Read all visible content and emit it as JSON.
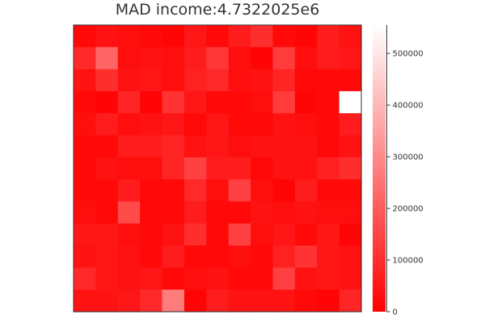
{
  "chart_data": {
    "type": "heatmap",
    "title": "MAD income:4.7322025e6",
    "xlabel": "",
    "ylabel": "",
    "colorbar": {
      "range": [
        0,
        555000
      ],
      "ticks": [
        0,
        100000,
        200000,
        300000,
        400000,
        500000
      ],
      "tick_labels": [
        "0",
        "100000",
        "200000",
        "300000",
        "400000",
        "500000"
      ],
      "low_color": "#ff0000",
      "high_color": "#ffffff"
    },
    "rows": 13,
    "cols": 13,
    "values": [
      [
        20000,
        40000,
        30000,
        20000,
        10000,
        50000,
        20000,
        60000,
        100000,
        20000,
        10000,
        60000,
        40000
      ],
      [
        90000,
        220000,
        30000,
        40000,
        30000,
        60000,
        120000,
        30000,
        10000,
        130000,
        30000,
        60000,
        50000
      ],
      [
        40000,
        100000,
        40000,
        50000,
        30000,
        70000,
        90000,
        30000,
        40000,
        80000,
        20000,
        20000,
        20000
      ],
      [
        20000,
        10000,
        80000,
        10000,
        110000,
        50000,
        20000,
        20000,
        30000,
        130000,
        10000,
        20000,
        555000
      ],
      [
        30000,
        60000,
        30000,
        40000,
        50000,
        20000,
        50000,
        20000,
        20000,
        40000,
        30000,
        20000,
        60000
      ],
      [
        20000,
        20000,
        60000,
        60000,
        80000,
        40000,
        50000,
        30000,
        40000,
        40000,
        40000,
        20000,
        40000
      ],
      [
        20000,
        40000,
        30000,
        30000,
        80000,
        140000,
        60000,
        60000,
        20000,
        40000,
        40000,
        70000,
        100000
      ],
      [
        20000,
        20000,
        60000,
        20000,
        20000,
        90000,
        30000,
        140000,
        30000,
        10000,
        60000,
        20000,
        20000
      ],
      [
        30000,
        20000,
        160000,
        20000,
        20000,
        60000,
        20000,
        20000,
        40000,
        30000,
        40000,
        30000,
        30000
      ],
      [
        50000,
        50000,
        30000,
        20000,
        40000,
        100000,
        20000,
        140000,
        30000,
        50000,
        20000,
        50000,
        10000
      ],
      [
        40000,
        50000,
        40000,
        20000,
        60000,
        20000,
        20000,
        30000,
        20000,
        70000,
        110000,
        50000,
        40000
      ],
      [
        90000,
        50000,
        40000,
        50000,
        20000,
        30000,
        40000,
        20000,
        20000,
        140000,
        40000,
        50000,
        40000
      ],
      [
        40000,
        40000,
        50000,
        90000,
        270000,
        10000,
        60000,
        40000,
        40000,
        40000,
        20000,
        10000,
        80000
      ]
    ]
  }
}
